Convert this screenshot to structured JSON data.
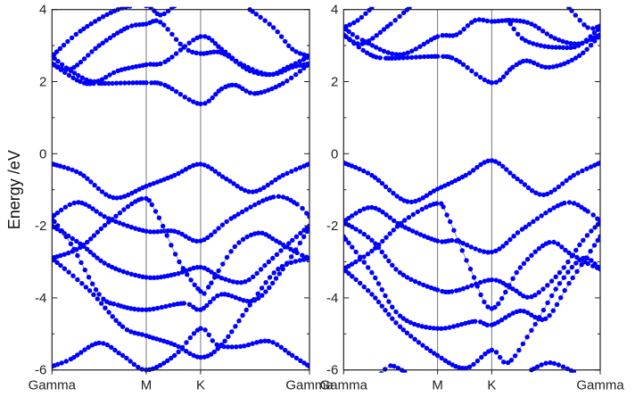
{
  "chart_data": {
    "type": "scatter",
    "ylabel": "Energy /eV",
    "ylim": [
      -6,
      4
    ],
    "yticks": [
      4,
      2,
      0,
      -2,
      -4,
      -6
    ],
    "kpath": [
      {
        "label": "Gamma",
        "k": 0
      },
      {
        "label": "M",
        "k": 1
      },
      {
        "label": "K",
        "k": 1.577
      },
      {
        "label": "Gamma",
        "k": 2.732
      }
    ],
    "color": "#0000ff",
    "panels": [
      {
        "name": "left",
        "bands": [
          [
            [
              0,
              -0.28
            ],
            [
              0.3,
              -0.55
            ],
            [
              0.65,
              -1.22
            ],
            [
              1,
              -0.9
            ],
            [
              1.3,
              -0.6
            ],
            [
              1.577,
              -0.29
            ],
            [
              1.85,
              -0.7
            ],
            [
              2.13,
              -1.06
            ],
            [
              2.45,
              -0.6
            ],
            [
              2.732,
              -0.28
            ]
          ],
          [
            [
              0,
              -1.75
            ],
            [
              0.28,
              -1.35
            ],
            [
              0.6,
              -1.8
            ],
            [
              1,
              -2.15
            ],
            [
              1.3,
              -2.15
            ],
            [
              1.577,
              -2.42
            ],
            [
              1.9,
              -1.8
            ],
            [
              2.35,
              -1.2
            ],
            [
              2.6,
              -1.4
            ],
            [
              2.732,
              -1.75
            ]
          ],
          [
            [
              0,
              -2.9
            ],
            [
              0.3,
              -2.6
            ],
            [
              0.6,
              -1.9
            ],
            [
              0.95,
              -1.25
            ],
            [
              1.1,
              -1.6
            ],
            [
              1.35,
              -3.0
            ],
            [
              1.577,
              -3.82
            ],
            [
              1.66,
              -3.7
            ],
            [
              1.94,
              -2.58
            ],
            [
              2.19,
              -2.2
            ],
            [
              2.38,
              -2.42
            ],
            [
              2.6,
              -2.75
            ],
            [
              2.732,
              -2.9
            ]
          ],
          [
            [
              0,
              -2.0
            ],
            [
              0.3,
              -2.5
            ],
            [
              0.6,
              -3.1
            ],
            [
              1,
              -3.43
            ],
            [
              1.3,
              -3.35
            ],
            [
              1.577,
              -3.15
            ],
            [
              1.8,
              -3.45
            ],
            [
              2.05,
              -3.55
            ],
            [
              2.3,
              -3.0
            ],
            [
              2.55,
              -2.4
            ],
            [
              2.732,
              -2.0
            ]
          ],
          [
            [
              0,
              -1.8
            ],
            [
              0.2,
              -2.5
            ],
            [
              0.5,
              -3.9
            ],
            [
              0.7,
              -4.2
            ],
            [
              1,
              -4.33
            ],
            [
              1.4,
              -4.15
            ],
            [
              1.577,
              -4.33
            ],
            [
              1.8,
              -3.9
            ],
            [
              2.15,
              -4.07
            ],
            [
              2.45,
              -3.2
            ],
            [
              2.732,
              -2.05
            ]
          ],
          [
            [
              0,
              -2.9
            ],
            [
              0.4,
              -3.8
            ],
            [
              0.75,
              -4.8
            ],
            [
              1,
              -5.05
            ],
            [
              1.3,
              -5.3
            ],
            [
              1.577,
              -5.65
            ],
            [
              1.8,
              -5.3
            ],
            [
              2.1,
              -4.2
            ],
            [
              2.4,
              -3.2
            ],
            [
              2.732,
              -2.9
            ]
          ],
          [
            [
              0,
              -5.9
            ],
            [
              0.2,
              -5.7
            ],
            [
              0.5,
              -5.25
            ],
            [
              0.75,
              -5.6
            ],
            [
              1,
              -6.0
            ],
            [
              1.3,
              -5.6
            ],
            [
              1.577,
              -4.85
            ],
            [
              1.75,
              -5.3
            ],
            [
              2.0,
              -5.35
            ],
            [
              2.3,
              -5.2
            ],
            [
              2.55,
              -5.6
            ],
            [
              2.732,
              -5.9
            ]
          ],
          [
            [
              0,
              2.5
            ],
            [
              0.3,
              2.0
            ],
            [
              0.5,
              1.95
            ],
            [
              1,
              1.97
            ],
            [
              1.2,
              1.9
            ],
            [
              1.577,
              1.38
            ],
            [
              1.8,
              1.8
            ],
            [
              1.95,
              1.9
            ],
            [
              2.15,
              1.67
            ],
            [
              2.45,
              1.95
            ],
            [
              2.732,
              2.5
            ]
          ],
          [
            [
              0,
              2.7
            ],
            [
              0.2,
              2.3
            ],
            [
              0.45,
              2.0
            ],
            [
              0.7,
              2.3
            ],
            [
              1,
              2.47
            ],
            [
              1.2,
              2.55
            ],
            [
              1.577,
              3.25
            ],
            [
              1.8,
              2.9
            ],
            [
              2.0,
              2.5
            ],
            [
              2.3,
              2.2
            ],
            [
              2.5,
              2.4
            ],
            [
              2.732,
              2.7
            ]
          ],
          [
            [
              0,
              2.5
            ],
            [
              0.2,
              2.35
            ],
            [
              0.5,
              3.0
            ],
            [
              0.8,
              3.5
            ],
            [
              1,
              3.6
            ],
            [
              1.15,
              3.65
            ],
            [
              1.4,
              2.95
            ],
            [
              1.577,
              2.78
            ],
            [
              1.8,
              2.8
            ],
            [
              2.1,
              2.3
            ],
            [
              2.35,
              2.2
            ],
            [
              2.55,
              2.4
            ],
            [
              2.732,
              2.5
            ]
          ],
          [
            [
              0,
              2.7
            ],
            [
              0.3,
              3.4
            ],
            [
              0.7,
              4.0
            ],
            [
              1,
              4.1
            ],
            [
              1.15,
              3.85
            ],
            [
              1.3,
              4.1
            ]
          ],
          [
            [
              2.1,
              4.0
            ],
            [
              2.35,
              3.5
            ],
            [
              2.55,
              2.9
            ],
            [
              2.732,
              2.7
            ]
          ]
        ]
      },
      {
        "name": "right",
        "bands": [
          [
            [
              0,
              -0.25
            ],
            [
              0.3,
              -0.6
            ],
            [
              0.68,
              -1.33
            ],
            [
              1,
              -0.98
            ],
            [
              1.3,
              -0.6
            ],
            [
              1.577,
              -0.19
            ],
            [
              1.85,
              -0.7
            ],
            [
              2.13,
              -1.14
            ],
            [
              2.45,
              -0.6
            ],
            [
              2.732,
              -0.25
            ]
          ],
          [
            [
              0,
              -1.88
            ],
            [
              0.3,
              -1.49
            ],
            [
              0.62,
              -2.0
            ],
            [
              1,
              -2.42
            ],
            [
              1.2,
              -2.42
            ],
            [
              1.577,
              -2.73
            ],
            [
              1.9,
              -2.1
            ],
            [
              2.35,
              -1.37
            ],
            [
              2.6,
              -1.6
            ],
            [
              2.732,
              -1.88
            ]
          ],
          [
            [
              0,
              -3.2
            ],
            [
              0.3,
              -2.7
            ],
            [
              0.65,
              -1.85
            ],
            [
              0.99,
              -1.38
            ],
            [
              1.1,
              -1.7
            ],
            [
              1.35,
              -3.2
            ],
            [
              1.577,
              -4.3
            ],
            [
              1.88,
              -3.16
            ],
            [
              2.19,
              -2.46
            ],
            [
              2.4,
              -2.75
            ],
            [
              2.6,
              -3.05
            ],
            [
              2.732,
              -3.2
            ]
          ],
          [
            [
              0,
              -1.9
            ],
            [
              0.3,
              -2.4
            ],
            [
              0.6,
              -3.3
            ],
            [
              1,
              -3.78
            ],
            [
              1.2,
              -3.8
            ],
            [
              1.577,
              -3.5
            ],
            [
              1.8,
              -3.75
            ],
            [
              2.0,
              -3.97
            ],
            [
              2.3,
              -3.3
            ],
            [
              2.55,
              -2.4
            ],
            [
              2.732,
              -1.9
            ]
          ],
          [
            [
              0,
              -2.3
            ],
            [
              0.3,
              -3.3
            ],
            [
              0.6,
              -4.5
            ],
            [
              1,
              -4.85
            ],
            [
              1.4,
              -4.65
            ],
            [
              1.577,
              -4.75
            ],
            [
              1.88,
              -4.36
            ],
            [
              2.15,
              -4.58
            ],
            [
              2.4,
              -3.6
            ],
            [
              2.732,
              -2.3
            ]
          ],
          [
            [
              0,
              -3.2
            ],
            [
              0.3,
              -3.9
            ],
            [
              0.6,
              -4.8
            ],
            [
              1,
              -5.6
            ],
            [
              1.3,
              -5.95
            ],
            [
              1.577,
              -5.45
            ],
            [
              1.75,
              -5.8
            ],
            [
              2.0,
              -4.9
            ],
            [
              2.3,
              -3.6
            ],
            [
              2.55,
              -2.9
            ],
            [
              2.732,
              -3.2
            ]
          ],
          [
            [
              0.4,
              -6.1
            ],
            [
              0.5,
              -5.88
            ],
            [
              0.65,
              -6.05
            ]
          ],
          [
            [
              2.0,
              -6.0
            ],
            [
              2.2,
              -5.8
            ],
            [
              2.45,
              -6.05
            ]
          ],
          [
            [
              0,
              3.3
            ],
            [
              0.25,
              2.8
            ],
            [
              0.45,
              2.65
            ],
            [
              1,
              2.7
            ],
            [
              1.2,
              2.6
            ],
            [
              1.577,
              1.97
            ],
            [
              1.8,
              2.4
            ],
            [
              1.95,
              2.58
            ],
            [
              2.15,
              2.4
            ],
            [
              2.35,
              2.5
            ],
            [
              2.55,
              2.8
            ],
            [
              2.732,
              3.3
            ]
          ],
          [
            [
              0,
              3.5
            ],
            [
              0.2,
              3.15
            ],
            [
              0.6,
              2.75
            ],
            [
              1,
              3.25
            ],
            [
              1.2,
              3.3
            ],
            [
              1.4,
              3.7
            ],
            [
              1.577,
              3.67
            ],
            [
              1.8,
              3.7
            ],
            [
              2.0,
              3.6
            ],
            [
              2.25,
              3.2
            ],
            [
              2.5,
              3.05
            ],
            [
              2.732,
              3.3
            ]
          ],
          [
            [
              0,
              3.3
            ],
            [
              0.2,
              3.05
            ],
            [
              0.5,
              3.6
            ],
            [
              0.7,
              4.05
            ]
          ],
          [
            [
              1.75,
              3.7
            ],
            [
              1.9,
              3.2
            ],
            [
              2.1,
              3.0
            ],
            [
              2.3,
              2.95
            ],
            [
              2.5,
              3.0
            ],
            [
              2.732,
              3.5
            ]
          ],
          [
            [
              0,
              3.5
            ],
            [
              0.15,
              3.7
            ],
            [
              0.3,
              4.05
            ]
          ],
          [
            [
              2.4,
              4.05
            ],
            [
              2.6,
              3.5
            ],
            [
              2.732,
              3.55
            ]
          ]
        ]
      }
    ]
  }
}
